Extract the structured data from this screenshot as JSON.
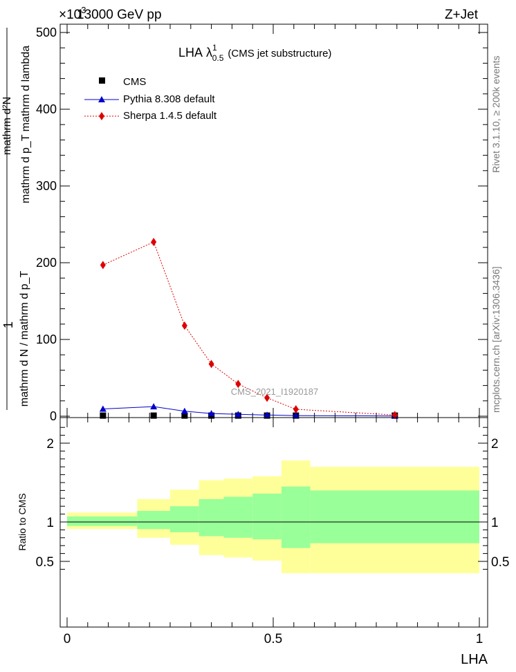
{
  "header": {
    "left": "13000 GeV pp",
    "right": "Z+Jet",
    "exponent": "×10",
    "exponent_power": "3"
  },
  "side": {
    "rivet": "Rivet 3.1.10, ≥ 200k events",
    "mcplots": "mcplots.cern.ch [arXiv:1306.3436]"
  },
  "watermark": "CMS_2021_I1920187",
  "chart_data": [
    {
      "type": "line",
      "title": "LHA",
      "title_sym": "λ",
      "title_sup": "1",
      "title_sub": "0.5",
      "subtitle": "(CMS jet substructure)",
      "ylabel_fraction_num": "1",
      "ylabel_denominator": "mathrm d N / mathrm d p_T",
      "ylabel_numerator": "mathrm d²N",
      "ylabel_numerator_denom": "mathrm d p_T mathrm d lambda",
      "xlim": [
        0,
        1
      ],
      "ylim": [
        0,
        500
      ],
      "y_ticks": [
        "0",
        "100",
        "200",
        "300",
        "400",
        "500"
      ],
      "legend": {
        "placement": "top-left",
        "entries": [
          "CMS",
          "Pythia 8.308 default",
          "Sherpa 1.4.5 default"
        ]
      },
      "series": [
        {
          "name": "CMS",
          "color": "#000000",
          "marker": "square",
          "x": [
            0.087,
            0.21,
            0.285,
            0.35,
            0.415,
            0.485,
            0.555,
            0.795
          ],
          "y": [
            0.8,
            0.8,
            0.8,
            0.8,
            0.8,
            0.8,
            0.8,
            0.8
          ]
        },
        {
          "name": "Pythia 8.308 default",
          "color": "#0000cc",
          "marker": "triangle",
          "x": [
            0.087,
            0.21,
            0.285,
            0.35,
            0.415,
            0.485,
            0.555,
            0.795
          ],
          "y": [
            9.5,
            12.5,
            6.5,
            3.5,
            2.5,
            1.5,
            0.8,
            0.3
          ]
        },
        {
          "name": "Sherpa 1.4.5 default",
          "color": "#dd0000",
          "marker": "diamond",
          "x": [
            0.087,
            0.21,
            0.285,
            0.35,
            0.415,
            0.485,
            0.555,
            0.795
          ],
          "y": [
            197,
            227,
            118,
            68,
            42,
            24,
            9,
            1.5
          ],
          "err": [
            2,
            4,
            2,
            2,
            2,
            2,
            1,
            0.5
          ]
        }
      ]
    },
    {
      "type": "area",
      "ylabel": "Ratio to CMS",
      "xlabel": "LHA",
      "xlim": [
        0,
        1
      ],
      "ylim": [
        0.35,
        2.25
      ],
      "x_ticks": [
        "0",
        "0.5",
        "1"
      ],
      "y_ticks": [
        "0.5",
        "1",
        "2"
      ],
      "bands": [
        {
          "x0": 0.0,
          "x1": 0.17,
          "green": [
            0.95,
            1.07
          ],
          "yellow": [
            0.91,
            1.12
          ]
        },
        {
          "x0": 0.17,
          "x1": 0.25,
          "green": [
            0.91,
            1.14
          ],
          "yellow": [
            0.8,
            1.29
          ]
        },
        {
          "x0": 0.25,
          "x1": 0.32,
          "green": [
            0.87,
            1.2
          ],
          "yellow": [
            0.71,
            1.41
          ]
        },
        {
          "x0": 0.32,
          "x1": 0.38,
          "green": [
            0.82,
            1.29
          ],
          "yellow": [
            0.58,
            1.53
          ]
        },
        {
          "x0": 0.38,
          "x1": 0.45,
          "green": [
            0.8,
            1.32
          ],
          "yellow": [
            0.55,
            1.55
          ]
        },
        {
          "x0": 0.45,
          "x1": 0.52,
          "green": [
            0.78,
            1.36
          ],
          "yellow": [
            0.51,
            1.58
          ]
        },
        {
          "x0": 0.52,
          "x1": 0.59,
          "green": [
            0.67,
            1.45
          ],
          "yellow": [
            0.35,
            1.78
          ]
        },
        {
          "x0": 0.59,
          "x1": 1.0,
          "green": [
            0.73,
            1.4
          ],
          "yellow": [
            0.35,
            1.7
          ]
        }
      ],
      "colors": {
        "green": "#99ff99",
        "yellow": "#ffff99"
      },
      "reference": 1
    }
  ]
}
